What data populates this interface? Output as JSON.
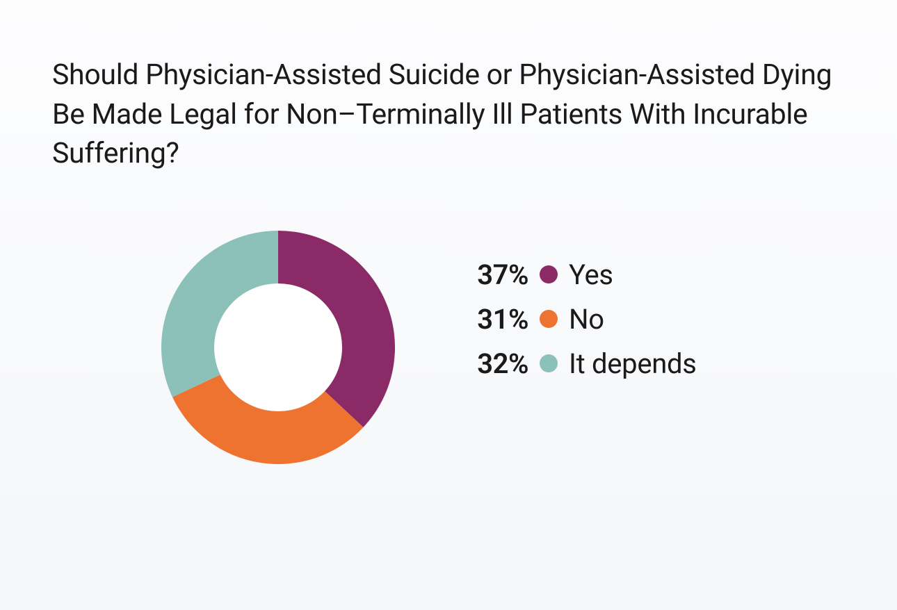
{
  "title": "Should Physician-Assisted Suicide or Physician-Assisted Dying Be Made Legal for Non–Terminally Ill Patients With Incurable Suffering?",
  "chart": {
    "type": "donut",
    "background_color": "#fdfdfe",
    "donut": {
      "outer_radius": 168,
      "inner_radius": 92,
      "center_fill": "#ffffff",
      "start_angle_deg": -90,
      "direction": "clockwise"
    },
    "slices": [
      {
        "label": "Yes",
        "value": 37,
        "pct_text": "37%",
        "color": "#8a2a66"
      },
      {
        "label": "No",
        "value": 31,
        "pct_text": "31%",
        "color": "#ee7330"
      },
      {
        "label": "It depends",
        "value": 32,
        "pct_text": "32%",
        "color": "#8bc1b9"
      }
    ],
    "legend": {
      "pct_fontsize": 40,
      "pct_fontweight": 600,
      "label_fontsize": 40,
      "label_fontweight": 400,
      "marker_diameter": 26,
      "text_color": "#1a1a1a"
    },
    "title_style": {
      "fontsize": 41,
      "fontweight": 400,
      "color": "#1a1a1a",
      "line_height": 1.38
    }
  }
}
